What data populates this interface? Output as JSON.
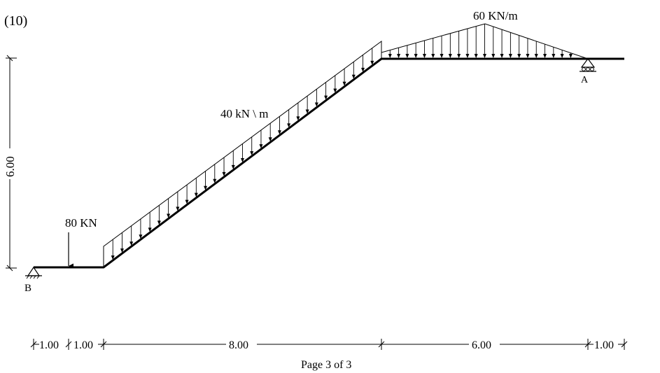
{
  "problem_number": "(10)",
  "loads": {
    "point_load": "80 KN",
    "inclined_udl": "40 kN \\ m",
    "triangular_peak": "60 KN/m"
  },
  "supports": {
    "left": "B",
    "right": "A"
  },
  "dimensions": {
    "vertical": "6.00",
    "horizontal": [
      "1.00",
      "1.00",
      "8.00",
      "6.00",
      "1.00"
    ]
  },
  "footer": "Page 3 of 3"
}
